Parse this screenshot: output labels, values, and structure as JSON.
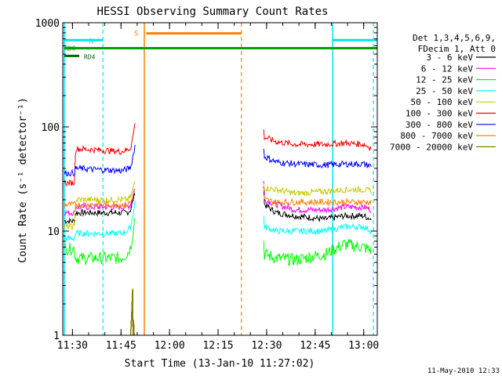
{
  "chart_data": {
    "type": "line",
    "title": "HESSI Observing Summary Count Rates",
    "xlabel": "Start Time (13-Jan-10 11:27:02)",
    "ylabel": "Count Rate (s⁻¹ detector⁻¹)",
    "y_scale": "log",
    "ylim": [
      1,
      1000
    ],
    "xlim_minutes": [
      11.45,
      13.07
    ],
    "x_tick_labels": [
      "11:30",
      "11:45",
      "12:00",
      "12:15",
      "12:30",
      "12:45",
      "13:00"
    ],
    "x_tick_hours": [
      11.5,
      11.75,
      12.0,
      12.25,
      12.5,
      12.75,
      13.0
    ],
    "y_tick_labels": [
      "1",
      "10",
      "100",
      "1000"
    ],
    "y_tick_values": [
      1,
      10,
      100,
      1000
    ],
    "grid": false,
    "legend_title": [
      "Det 1,3,4,5,6,9,",
      "FDecim 1, Att 0"
    ],
    "series": [
      {
        "name": "3 - 6 keV",
        "color": "#000000",
        "segments": [
          [
            [
              11.458,
              11.512,
              11.515,
              11.75,
              11.78,
              11.8,
              11.818,
              11.823
            ],
            [
              12.5,
              12.5,
              15,
              15,
              15,
              16,
              22,
              24
            ]
          ],
          [
            [
              12.485,
              12.488,
              12.55,
              12.65,
              12.8,
              12.9,
              13.0,
              13.04
            ],
            [
              27,
              18,
              15,
              14,
              13,
              14,
              14,
              13
            ]
          ]
        ]
      },
      {
        "name": "6 - 12 keV",
        "color": "#ff00ff",
        "segments": [
          [
            [
              11.458,
              11.512,
              11.515,
              11.75,
              11.78,
              11.8,
              11.818,
              11.823
            ],
            [
              15,
              15,
              17,
              17,
              17,
              18,
              25,
              27
            ]
          ],
          [
            [
              12.485,
              12.488,
              12.55,
              12.65,
              12.8,
              12.9,
              13.0,
              13.04
            ],
            [
              30,
              20,
              18,
              16,
              16,
              17,
              17,
              16
            ]
          ]
        ]
      },
      {
        "name": "12 - 25 keV",
        "color": "#00ff00",
        "segments": [
          [
            [
              11.458,
              11.512,
              11.515,
              11.75,
              11.78,
              11.8,
              11.818,
              11.823
            ],
            [
              6.8,
              6.8,
              5.5,
              5.5,
              6,
              7,
              12,
              15
            ]
          ],
          [
            [
              12.485,
              12.488,
              12.55,
              12.65,
              12.8,
              12.9,
              13.0,
              13.04
            ],
            [
              8,
              6,
              5.5,
              5.3,
              6,
              7.5,
              7,
              6.5
            ]
          ]
        ]
      },
      {
        "name": "25 - 50 keV",
        "color": "#00ffff",
        "segments": [
          [
            [
              11.458,
              11.512,
              11.515,
              11.75,
              11.78,
              11.8,
              11.818,
              11.823
            ],
            [
              8.5,
              8.5,
              9.5,
              9.5,
              10,
              11,
              17,
              20
            ]
          ],
          [
            [
              12.485,
              12.488,
              12.55,
              12.65,
              12.8,
              12.9,
              13.0,
              13.04
            ],
            [
              14,
              11,
              10,
              10,
              10,
              11,
              11,
              10
            ]
          ]
        ]
      },
      {
        "name": "50 - 100 keV",
        "color": "#c8c800",
        "segments": [
          [
            [
              11.458,
              11.512,
              11.515,
              11.75,
              11.78,
              11.8,
              11.818,
              11.823
            ],
            [
              11,
              11,
              20,
              20,
              20,
              21,
              28,
              31
            ]
          ],
          [
            [
              12.485,
              12.488,
              12.55,
              12.65,
              12.8,
              12.9,
              13.0,
              13.04
            ],
            [
              29,
              26,
              25,
              23,
              24,
              25,
              25,
              24
            ]
          ]
        ]
      },
      {
        "name": "100 - 300 keV",
        "color": "#ff0000",
        "segments": [
          [
            [
              11.458,
              11.512,
              11.515,
              11.75,
              11.78,
              11.8,
              11.818,
              11.823
            ],
            [
              29,
              29,
              62,
              58,
              60,
              63,
              95,
              120
            ]
          ],
          [
            [
              12.485,
              12.488,
              12.55,
              12.65,
              12.8,
              12.9,
              13.0,
              13.04
            ],
            [
              90,
              80,
              72,
              68,
              68,
              70,
              68,
              63
            ]
          ]
        ]
      },
      {
        "name": "300 - 800 keV",
        "color": "#0000ff",
        "segments": [
          [
            [
              11.458,
              11.512,
              11.515,
              11.75,
              11.78,
              11.8,
              11.818,
              11.823
            ],
            [
              36,
              36,
              40,
              38,
              39,
              41,
              60,
              70
            ]
          ],
          [
            [
              12.485,
              12.488,
              12.55,
              12.65,
              12.8,
              12.9,
              13.0,
              13.04
            ],
            [
              60,
              52,
              46,
              44,
              43,
              44,
              44,
              42
            ]
          ]
        ]
      },
      {
        "name": "800 - 7000 keV",
        "color": "#ff8000",
        "segments": [
          [
            [
              11.458,
              11.512,
              11.515,
              11.75,
              11.78,
              11.8,
              11.818,
              11.823
            ],
            [
              18,
              18,
              18,
              18,
              18,
              19,
              23,
              25
            ]
          ],
          [
            [
              12.485,
              12.488,
              12.55,
              12.65,
              12.8,
              12.9,
              13.0,
              13.04
            ],
            [
              22,
              20,
              19,
              19,
              19,
              19,
              19,
              19
            ]
          ]
        ]
      },
      {
        "name": "7000 - 20000 keV",
        "color": "#808000",
        "segments": [
          [
            [
              11.8,
              11.805,
              11.81,
              11.812,
              11.815,
              11.818
            ],
            [
              1,
              1.6,
              2.8,
              1,
              1.4,
              1
            ]
          ]
        ]
      }
    ],
    "annotations": {
      "night_label": "N",
      "saa_label": "S",
      "rdo_label": "RDO",
      "rd4_label": "RD4",
      "timestamp": "11-May-2010 12:33"
    },
    "overlays": {
      "cyan_bars_y": 680,
      "cyan_bars": [
        [
          11.458,
          11.657
        ],
        [
          12.84,
          13.07
        ]
      ],
      "green_bar_y": 570,
      "green_bar": [
        11.458,
        13.07
      ],
      "dkgreen_bar_y": 480,
      "dkgreen_bar": [
        11.458,
        11.535
      ],
      "orange_bar_y": 790,
      "orange_bar": [
        11.88,
        12.37
      ],
      "cyan_solid_v": [
        11.458,
        12.84
      ],
      "cyan_dash_v": [
        11.657,
        13.05
      ],
      "orange_solid_v": [
        11.87
      ],
      "orange_dash_v": [
        12.37
      ]
    },
    "colors": {
      "cyan": "#00e5ee",
      "green": "#00a000",
      "dark_green": "#006400",
      "orange": "#ff8000"
    }
  }
}
